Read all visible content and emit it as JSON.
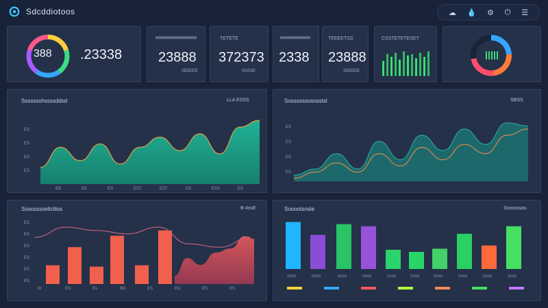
{
  "app": {
    "name": "Sdcddiotoos",
    "logo_icon": "app-logo-icon"
  },
  "toolbar": {
    "icons": [
      "cloud-icon",
      "drop-icon",
      "settings-icon",
      "power-icon",
      "sliders-icon"
    ]
  },
  "kpis": {
    "ring_value": "388",
    "ring_colors": [
      "#ffcf3a",
      "#3ddc84",
      "#35a7ff",
      "#a45bff",
      "#ff5a8a"
    ],
    "main_value": ".23338",
    "card2_value": "23888",
    "card2_caption": "SEEEEE",
    "card3_label": "TETETE",
    "card3_value": "372373",
    "card3_caption": "SSSSE",
    "card4_value": "2338",
    "card5_label": "TEEEETSS",
    "card5_value": "23888",
    "card5_caption": "SEEEEE",
    "card6_label": "CSSTETETESET",
    "card6_bars": [
      0.55,
      0.8,
      0.7,
      0.85,
      0.6,
      0.9,
      0.75,
      0.8,
      0.65,
      0.85,
      0.7,
      0.9
    ],
    "gauge_fraction": 0.72,
    "gauge_colors": [
      "#35a7ff",
      "#ff7a3a",
      "#ff4d6a"
    ]
  },
  "charts": {
    "area1": {
      "title": "Ssssssshssssddsd",
      "tag": "LLA ESSS",
      "y_labels": [
        "ES",
        "ES",
        "ES",
        "ES"
      ],
      "x_labels": [
        "EB",
        "EE",
        "ES",
        "EST",
        "EST",
        "ES",
        "ESS",
        "ES"
      ],
      "values": [
        0.25,
        0.55,
        0.35,
        0.6,
        0.3,
        0.55,
        0.7,
        0.5,
        0.75,
        0.45,
        0.85,
        0.95
      ]
    },
    "area2": {
      "title": "Sossssssosnsstsl",
      "tag": "SBSS",
      "y_labels": [
        "ES",
        "ES",
        "ES",
        "ES"
      ],
      "values": [
        0.1,
        0.2,
        0.45,
        0.2,
        0.65,
        0.35,
        0.75,
        0.5,
        0.85,
        0.6,
        0.95,
        0.9
      ],
      "values_b": [
        0.05,
        0.15,
        0.3,
        0.15,
        0.45,
        0.25,
        0.55,
        0.35,
        0.6,
        0.45,
        0.75,
        0.85
      ]
    },
    "combo": {
      "title": "Sosossssetlcliiss",
      "tag": "B-4ssE",
      "y_labels": [
        "ES",
        "ES",
        "ES",
        "ES",
        "ES",
        "ES"
      ],
      "x_labels": [
        "Et",
        "EG",
        "Es",
        "BG",
        "ES",
        "EG",
        "ES",
        "ES"
      ],
      "bars": [
        0.28,
        0.55,
        0.26,
        0.72,
        0.28,
        0.8
      ],
      "bar_colors": [
        "#f0604c",
        "#f0604c",
        "#f0604c",
        "#f0604c",
        "#f0604c",
        "#f0604c"
      ],
      "line": [
        0.8,
        0.95,
        0.9,
        0.85,
        0.95,
        0.7,
        0.65,
        0.8
      ]
    },
    "bars": {
      "title": "Sooootsnsle",
      "tag": "Ssossssas",
      "values": [
        0.88,
        0.64,
        0.84,
        0.8,
        0.36,
        0.32,
        0.38,
        0.66,
        0.44,
        0.8
      ],
      "colors": [
        "#1fb6ff",
        "#8a4dd6",
        "#29c463",
        "#9652d9",
        "#2bd46b",
        "#27d667",
        "#43d16a",
        "#29d062",
        "#ff6a3d",
        "#45e062"
      ],
      "x_labels": [
        "SSSS",
        "ESSS",
        "SESS",
        "SASS",
        "SSSS",
        "SSSS",
        "SSSS",
        "SSSS",
        "SSSS",
        "SSSS"
      ],
      "legend_colors": [
        "#ffd23a",
        "#35a7ff",
        "#ff5a5a",
        "#b2ff3a",
        "#ff8a5a",
        "#45e062",
        "#c07bff"
      ]
    }
  }
}
